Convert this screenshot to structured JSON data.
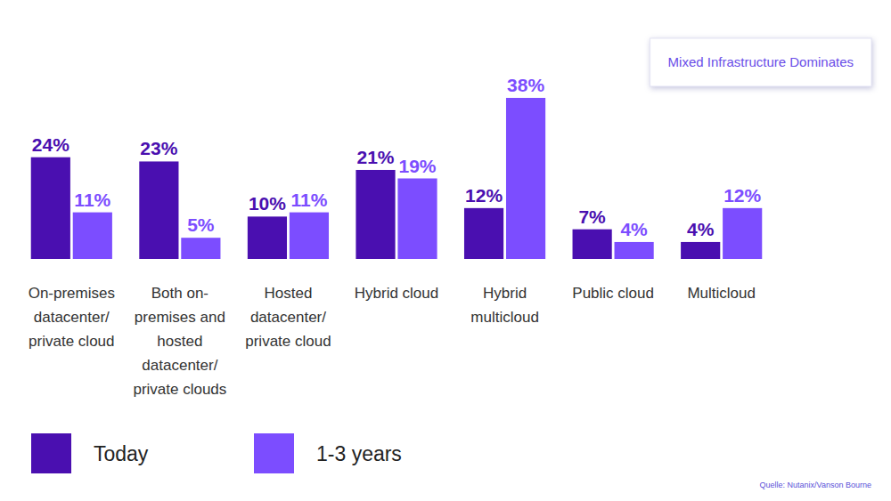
{
  "chart_data": {
    "type": "bar",
    "title": "Mixed Infrastructure Dominates",
    "source": "Quelle: Nutanix/Vanson Bourne",
    "categories": [
      "On-premises datacenter/private cloud",
      "Both on-premises and hosted datacenter/private clouds",
      "Hosted datacenter/private cloud",
      "Hybrid cloud",
      "Hybrid multicloud",
      "Public cloud",
      "Multicloud"
    ],
    "series": [
      {
        "name": "Today",
        "color": "#4a0fb0",
        "values": [
          24,
          23,
          10,
          21,
          12,
          7,
          4
        ],
        "value_labels": [
          "24%",
          "23%",
          "10%",
          "21%",
          "12%",
          "7%",
          "4%"
        ]
      },
      {
        "name": "1-3 years",
        "color": "#7c4dff",
        "values": [
          11,
          5,
          11,
          19,
          38,
          4,
          12
        ],
        "value_labels": [
          "11%",
          "5%",
          "11%",
          "19%",
          "38%",
          "4%",
          "12%"
        ]
      }
    ],
    "data_labels": true,
    "tick_labels": "x",
    "grid": false,
    "legend": "bottom-left"
  }
}
